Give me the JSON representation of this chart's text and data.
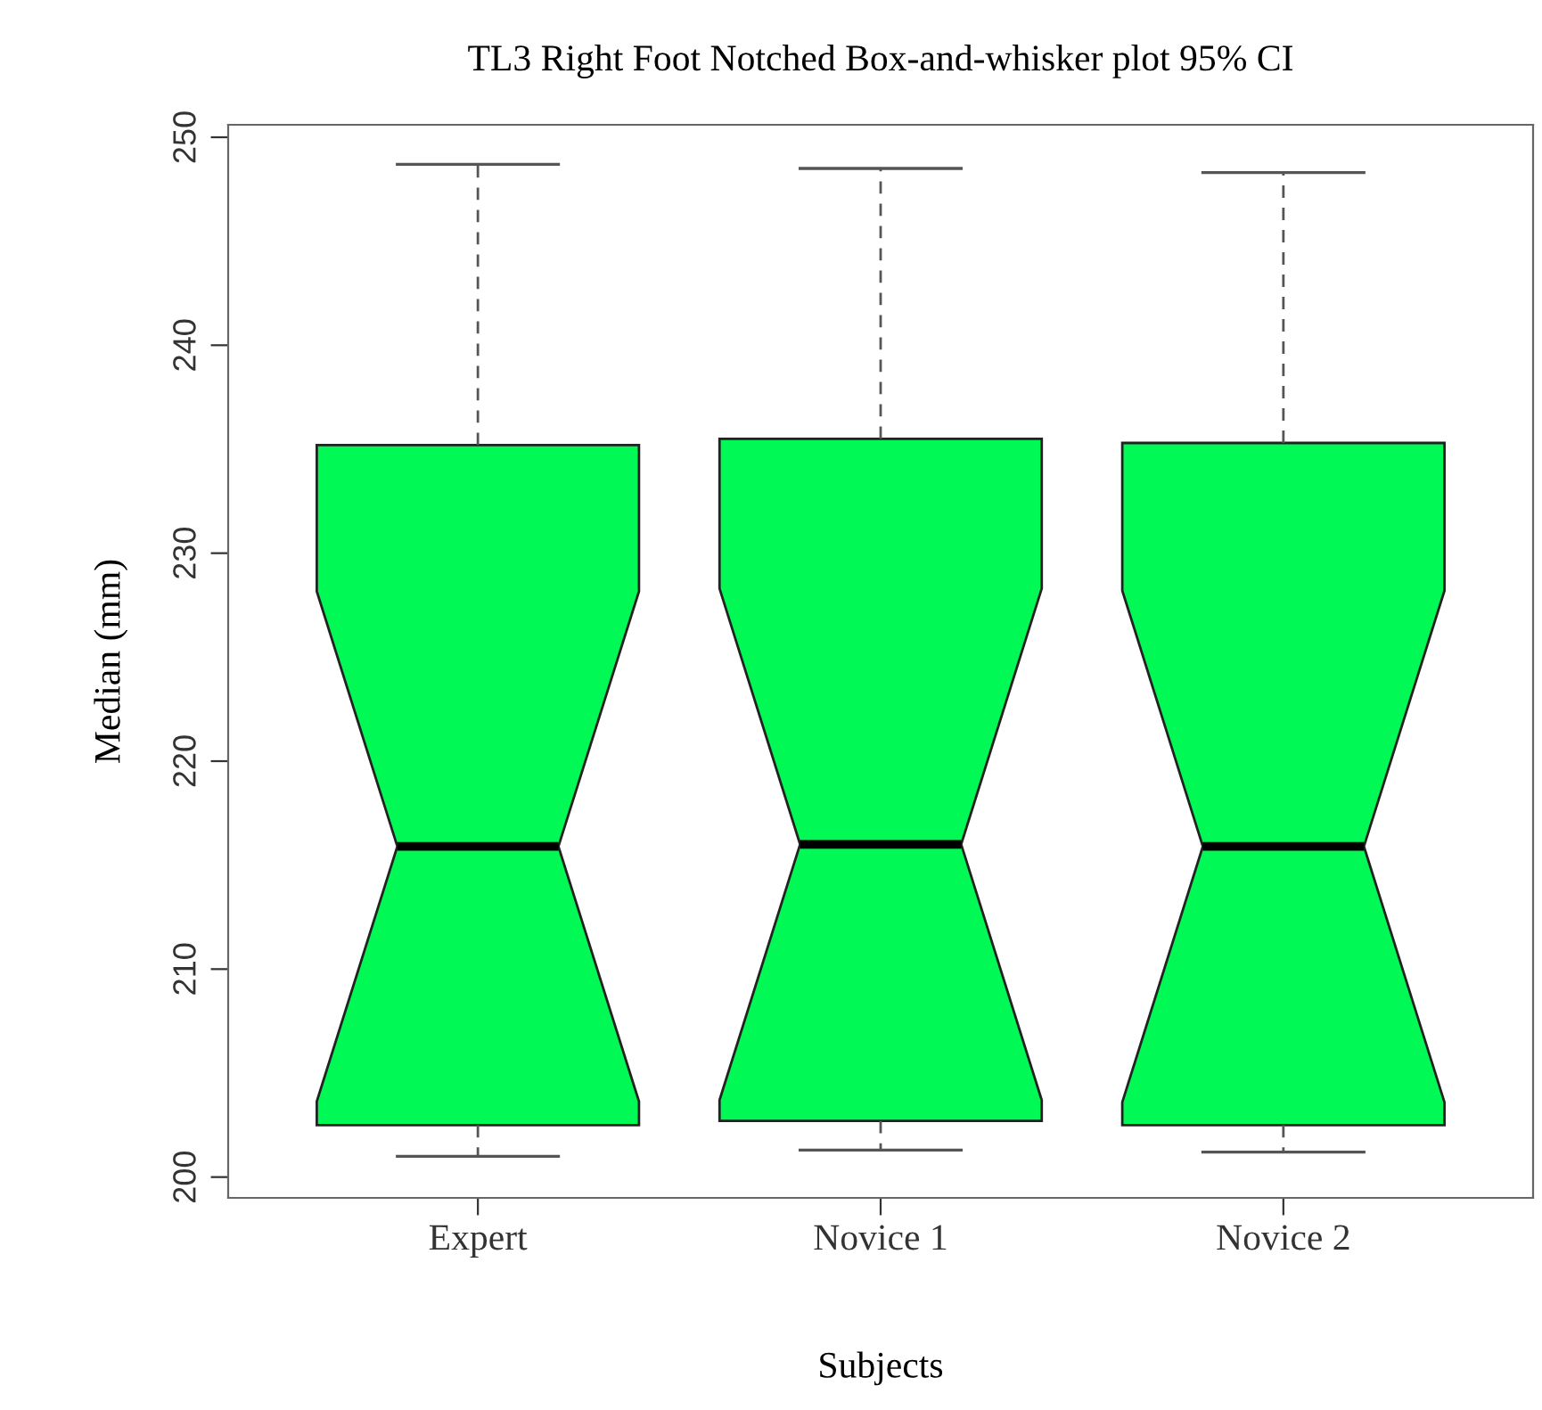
{
  "chart_data": {
    "type": "box",
    "title": "TL3 Right Foot Notched Box-and-whisker plot 95% CI",
    "xlabel": "Subjects",
    "ylabel": "Median (mm)",
    "categories": [
      "Expert",
      "Novice 1",
      "Novice 2"
    ],
    "color": "#00f954",
    "boxes": [
      {
        "low": 201.0,
        "q1": 202.5,
        "median": 215.9,
        "q3": 235.2,
        "high": 248.7
      },
      {
        "low": 201.3,
        "q1": 202.7,
        "median": 216.0,
        "q3": 235.5,
        "high": 248.5
      },
      {
        "low": 201.2,
        "q1": 202.5,
        "median": 215.9,
        "q3": 235.3,
        "high": 248.3
      }
    ],
    "ylim": [
      199.0,
      250.6
    ],
    "yticks": [
      200,
      210,
      220,
      230,
      240,
      250
    ],
    "grid": false
  }
}
